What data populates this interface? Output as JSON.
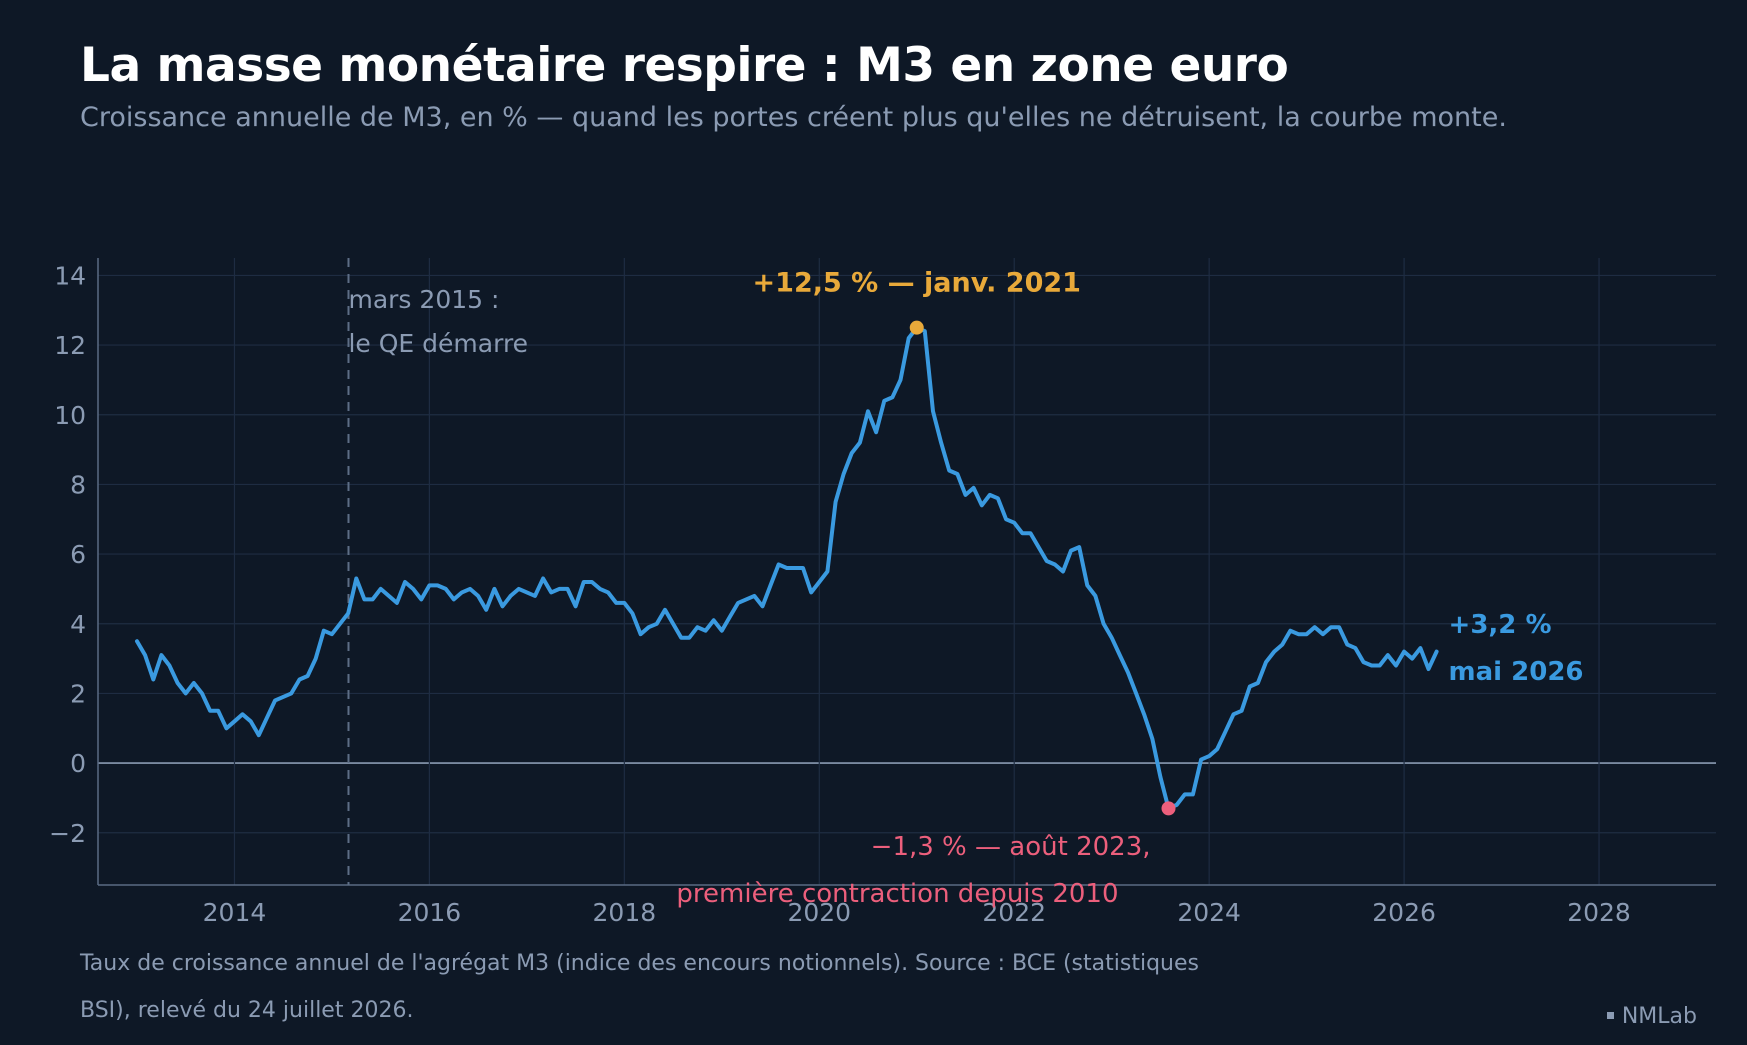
{
  "header": {
    "title": "La masse monétaire respire : M3 en zone euro",
    "subtitle": "Croissance annuelle de M3, en % — quand les portes créent plus qu'elles ne détruisent, la courbe monte."
  },
  "footer": {
    "note": "Taux de croissance annuel de l'agrégat M3 (indice des encours notionnels). Source : BCE (statistiques BSI), relevé du 24 juillet 2026.",
    "brand": "NMLab"
  },
  "colors": {
    "background": "#0e1826",
    "line": "#3a9ae0",
    "peak": "#e8a93a",
    "trough": "#ec5f7c",
    "grid": "#1e2c42",
    "axis_text": "#8b9bb3"
  },
  "chart_data": {
    "type": "line",
    "title": "La masse monétaire respire : M3 en zone euro",
    "subtitle": "Croissance annuelle de M3, en % — quand les portes créent plus qu'elles ne détruisent, la courbe monte.",
    "xlabel": "",
    "ylabel": "",
    "xlim": [
      2012.6,
      2029.2
    ],
    "ylim": [
      -3.5,
      14.5
    ],
    "x_ticks": [
      2014,
      2016,
      2018,
      2020,
      2022,
      2024,
      2026,
      2028
    ],
    "y_ticks": [
      -2,
      0,
      2,
      4,
      6,
      8,
      10,
      12,
      14
    ],
    "y_tick_labels": [
      "−2",
      "0",
      "2",
      "4",
      "6",
      "8",
      "10",
      "12",
      "14"
    ],
    "grid": true,
    "legend": "none",
    "series": [
      {
        "x": [
          2013.0,
          2013.083,
          2013.167,
          2013.25,
          2013.333,
          2013.417,
          2013.5,
          2013.583,
          2013.667,
          2013.75,
          2013.833,
          2013.917,
          2014.0,
          2014.083,
          2014.167,
          2014.25,
          2014.333,
          2014.417,
          2014.5,
          2014.583,
          2014.667,
          2014.75,
          2014.833,
          2014.917,
          2015.0,
          2015.083,
          2015.167,
          2015.25,
          2015.333,
          2015.417,
          2015.5,
          2015.583,
          2015.667,
          2015.75,
          2015.833,
          2015.917,
          2016.0,
          2016.083,
          2016.167,
          2016.25,
          2016.333,
          2016.417,
          2016.5,
          2016.583,
          2016.667,
          2016.75,
          2016.833,
          2016.917,
          2017.0,
          2017.083,
          2017.167,
          2017.25,
          2017.333,
          2017.417,
          2017.5,
          2017.583,
          2017.667,
          2017.75,
          2017.833,
          2017.917,
          2018.0,
          2018.083,
          2018.167,
          2018.25,
          2018.333,
          2018.417,
          2018.5,
          2018.583,
          2018.667,
          2018.75,
          2018.833,
          2018.917,
          2019.0,
          2019.083,
          2019.167,
          2019.25,
          2019.333,
          2019.417,
          2019.5,
          2019.583,
          2019.667,
          2019.75,
          2019.833,
          2019.917,
          2020.0,
          2020.083,
          2020.167,
          2020.25,
          2020.333,
          2020.417,
          2020.5,
          2020.583,
          2020.667,
          2020.75,
          2020.833,
          2020.917,
          2021.0,
          2021.083,
          2021.167,
          2021.25,
          2021.333,
          2021.417,
          2021.5,
          2021.583,
          2021.667,
          2021.75,
          2021.833,
          2021.917,
          2022.0,
          2022.083,
          2022.167,
          2022.25,
          2022.333,
          2022.417,
          2022.5,
          2022.583,
          2022.667,
          2022.75,
          2022.833,
          2022.917,
          2023.0,
          2023.083,
          2023.167,
          2023.25,
          2023.333,
          2023.417,
          2023.5,
          2023.583,
          2023.667,
          2023.75,
          2023.833,
          2023.917,
          2024.0,
          2024.083,
          2024.167,
          2024.25,
          2024.333,
          2024.417,
          2024.5,
          2024.583,
          2024.667,
          2024.75,
          2024.833,
          2024.917,
          2025.0,
          2025.083,
          2025.167,
          2025.25,
          2025.333,
          2025.417,
          2025.5,
          2025.583,
          2025.667,
          2025.75,
          2025.833,
          2025.917,
          2026.0,
          2026.083,
          2026.167,
          2026.25,
          2026.333
        ],
        "values": [
          3.5,
          3.1,
          2.4,
          3.1,
          2.8,
          2.3,
          2.0,
          2.3,
          2.0,
          1.5,
          1.5,
          1.0,
          1.2,
          1.4,
          1.2,
          0.8,
          1.3,
          1.8,
          1.9,
          2.0,
          2.4,
          2.5,
          3.0,
          3.8,
          3.7,
          4.0,
          4.3,
          5.3,
          4.7,
          4.7,
          5.0,
          4.8,
          4.6,
          5.2,
          5.0,
          4.7,
          5.1,
          5.1,
          5.0,
          4.7,
          4.9,
          5.0,
          4.8,
          4.4,
          5.0,
          4.5,
          4.8,
          5.0,
          4.9,
          4.8,
          5.3,
          4.9,
          5.0,
          5.0,
          4.5,
          5.2,
          5.2,
          5.0,
          4.9,
          4.6,
          4.6,
          4.3,
          3.7,
          3.9,
          4.0,
          4.4,
          4.0,
          3.6,
          3.6,
          3.9,
          3.8,
          4.1,
          3.8,
          4.2,
          4.6,
          4.7,
          4.8,
          4.5,
          5.1,
          5.7,
          5.6,
          5.6,
          5.6,
          4.9,
          5.2,
          5.5,
          7.5,
          8.3,
          8.9,
          9.2,
          10.1,
          9.5,
          10.4,
          10.5,
          11.0,
          12.2,
          12.5,
          12.4,
          10.1,
          9.2,
          8.4,
          8.3,
          7.7,
          7.9,
          7.4,
          7.7,
          7.6,
          7.0,
          6.9,
          6.6,
          6.6,
          6.2,
          5.8,
          5.7,
          5.5,
          6.1,
          6.2,
          5.1,
          4.8,
          4.0,
          3.6,
          3.1,
          2.6,
          2.0,
          1.4,
          0.7,
          -0.4,
          -1.3,
          -1.2,
          -0.9,
          -0.9,
          0.1,
          0.2,
          0.4,
          0.9,
          1.4,
          1.5,
          2.2,
          2.3,
          2.9,
          3.2,
          3.4,
          3.8,
          3.7,
          3.7,
          3.9,
          3.7,
          3.9,
          3.9,
          3.4,
          3.3,
          2.9,
          2.8,
          2.8,
          3.1,
          2.8,
          3.2,
          3.0,
          3.3,
          2.7,
          3.2
        ]
      }
    ],
    "annotations": {
      "qe": {
        "x": 2015.17,
        "line1": "mars 2015 :",
        "line2": "le QE démarre"
      },
      "peak": {
        "x": 2021.0,
        "y": 12.5,
        "label": "+12,5 % — janv. 2021"
      },
      "trough": {
        "x": 2023.583,
        "y": -1.3,
        "line1": "−1,3 % — août 2023,",
        "line2": "première contraction depuis 2010"
      },
      "last": {
        "x": 2026.333,
        "y": 3.2,
        "line1": "+3,2 %",
        "line2": "mai 2026"
      }
    }
  }
}
